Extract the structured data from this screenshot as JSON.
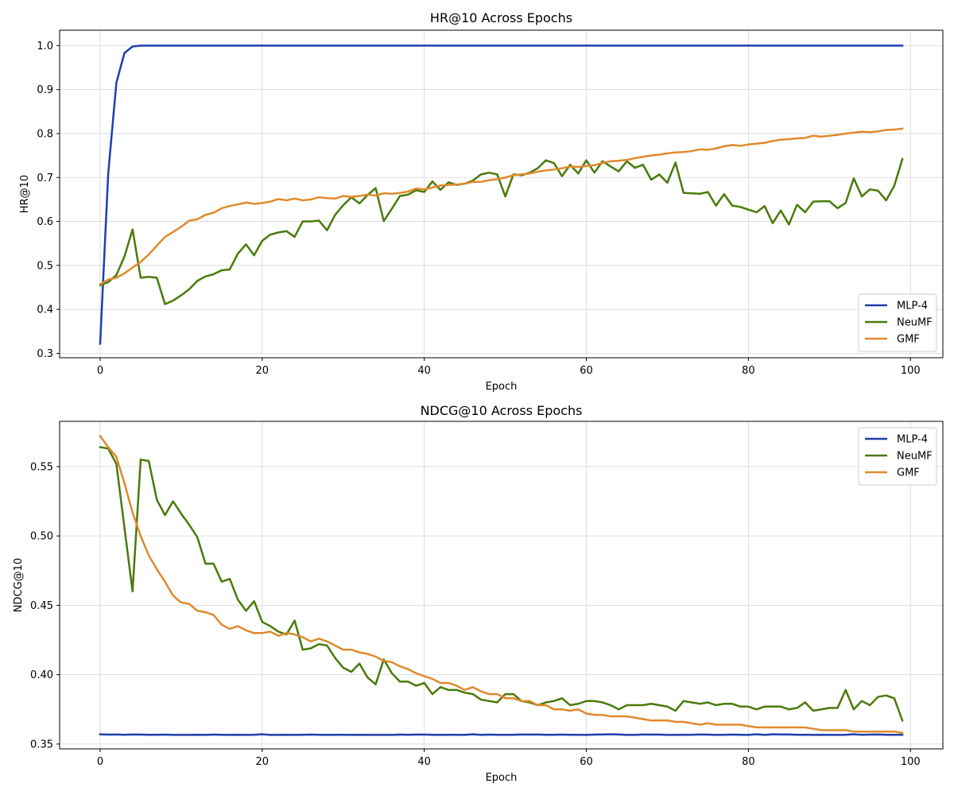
{
  "chart_data": [
    {
      "type": "line",
      "title": "HR@10 Across Epochs",
      "xlabel": "Epoch",
      "ylabel": "HR@10",
      "xlim": [
        -5,
        104
      ],
      "ylim": [
        0.29,
        1.035
      ],
      "xticks": [
        0,
        20,
        40,
        60,
        80,
        100
      ],
      "xtick_labels": [
        "0",
        "20",
        "40",
        "60",
        "80",
        "100"
      ],
      "yticks": [
        0.3,
        0.4,
        0.5,
        0.6,
        0.7,
        0.8,
        0.9,
        1.0
      ],
      "ytick_labels": [
        "0.3",
        "0.4",
        "0.5",
        "0.6",
        "0.7",
        "0.8",
        "0.9",
        "1.0"
      ],
      "grid": true,
      "legend": "lower right",
      "series": [
        {
          "name": "MLP-4",
          "color": "#1f3fae",
          "values": [
            0.322,
            0.71,
            0.915,
            0.983,
            0.998,
            1.0,
            1.0,
            1.0,
            1.0,
            1.0,
            1.0,
            1.0,
            1.0,
            1.0,
            1.0,
            1.0,
            1.0,
            1.0,
            1.0,
            1.0,
            1.0,
            1.0,
            1.0,
            1.0,
            1.0,
            1.0,
            1.0,
            1.0,
            1.0,
            1.0,
            1.0,
            1.0,
            1.0,
            1.0,
            1.0,
            1.0,
            1.0,
            1.0,
            1.0,
            1.0,
            1.0,
            1.0,
            1.0,
            1.0,
            1.0,
            1.0,
            1.0,
            1.0,
            1.0,
            1.0,
            1.0,
            1.0,
            1.0,
            1.0,
            1.0,
            1.0,
            1.0,
            1.0,
            1.0,
            1.0,
            1.0,
            1.0,
            1.0,
            1.0,
            1.0,
            1.0,
            1.0,
            1.0,
            1.0,
            1.0,
            1.0,
            1.0,
            1.0,
            1.0,
            1.0,
            1.0,
            1.0,
            1.0,
            1.0,
            1.0,
            1.0,
            1.0,
            1.0,
            1.0,
            1.0,
            1.0,
            1.0,
            1.0,
            1.0,
            1.0,
            1.0,
            1.0,
            1.0,
            1.0,
            1.0,
            1.0,
            1.0,
            1.0,
            1.0,
            1.0
          ]
        },
        {
          "name": "NeuMF",
          "color": "#4a7a0a",
          "values": [
            0.455,
            0.462,
            0.478,
            0.52,
            0.582,
            0.472,
            0.474,
            0.472,
            0.412,
            0.42,
            0.432,
            0.446,
            0.465,
            0.475,
            0.48,
            0.489,
            0.491,
            0.527,
            0.548,
            0.523,
            0.556,
            0.57,
            0.575,
            0.578,
            0.565,
            0.6,
            0.6,
            0.602,
            0.58,
            0.615,
            0.637,
            0.655,
            0.641,
            0.66,
            0.676,
            0.601,
            0.629,
            0.658,
            0.661,
            0.671,
            0.667,
            0.691,
            0.672,
            0.689,
            0.683,
            0.686,
            0.693,
            0.707,
            0.711,
            0.707,
            0.657,
            0.707,
            0.705,
            0.711,
            0.721,
            0.739,
            0.733,
            0.703,
            0.729,
            0.709,
            0.739,
            0.711,
            0.737,
            0.725,
            0.714,
            0.737,
            0.722,
            0.729,
            0.695,
            0.707,
            0.688,
            0.734,
            0.665,
            0.664,
            0.663,
            0.667,
            0.636,
            0.662,
            0.636,
            0.633,
            0.627,
            0.621,
            0.635,
            0.596,
            0.625,
            0.593,
            0.638,
            0.621,
            0.645,
            0.646,
            0.646,
            0.63,
            0.642,
            0.698,
            0.657,
            0.673,
            0.67,
            0.648,
            0.681,
            0.742
          ]
        },
        {
          "name": "GMF",
          "color": "#df8a2c",
          "values": [
            0.457,
            0.468,
            0.472,
            0.482,
            0.495,
            0.508,
            0.525,
            0.545,
            0.565,
            0.576,
            0.588,
            0.602,
            0.605,
            0.615,
            0.62,
            0.63,
            0.635,
            0.639,
            0.643,
            0.64,
            0.642,
            0.645,
            0.651,
            0.648,
            0.652,
            0.648,
            0.65,
            0.655,
            0.653,
            0.652,
            0.658,
            0.656,
            0.658,
            0.661,
            0.659,
            0.664,
            0.663,
            0.665,
            0.668,
            0.675,
            0.673,
            0.677,
            0.682,
            0.683,
            0.684,
            0.686,
            0.69,
            0.69,
            0.694,
            0.696,
            0.7,
            0.705,
            0.707,
            0.709,
            0.713,
            0.716,
            0.718,
            0.721,
            0.725,
            0.724,
            0.726,
            0.728,
            0.733,
            0.737,
            0.738,
            0.74,
            0.744,
            0.747,
            0.75,
            0.752,
            0.755,
            0.757,
            0.758,
            0.76,
            0.764,
            0.763,
            0.766,
            0.771,
            0.774,
            0.772,
            0.775,
            0.777,
            0.779,
            0.783,
            0.786,
            0.787,
            0.789,
            0.79,
            0.795,
            0.793,
            0.795,
            0.797,
            0.8,
            0.802,
            0.804,
            0.803,
            0.805,
            0.808,
            0.809,
            0.811
          ]
        }
      ]
    },
    {
      "type": "line",
      "title": "NDCG@10 Across Epochs",
      "xlabel": "Epoch",
      "ylabel": "NDCG@10",
      "xlim": [
        -5,
        104
      ],
      "ylim": [
        0.3465,
        0.5826
      ],
      "xticks": [
        0,
        20,
        40,
        60,
        80,
        100
      ],
      "xtick_labels": [
        "0",
        "20",
        "40",
        "60",
        "80",
        "100"
      ],
      "yticks": [
        0.35,
        0.4,
        0.45,
        0.5,
        0.55
      ],
      "ytick_labels": [
        "0.35",
        "0.40",
        "0.45",
        "0.50",
        "0.55"
      ],
      "grid": true,
      "legend": "upper right",
      "series": [
        {
          "name": "MLP-4",
          "color": "#1f3fae",
          "values": [
            0.357,
            0.3568,
            0.3569,
            0.3567,
            0.3569,
            0.3568,
            0.3567,
            0.3567,
            0.3568,
            0.3566,
            0.3566,
            0.3566,
            0.3567,
            0.3566,
            0.3568,
            0.3567,
            0.3566,
            0.3567,
            0.3566,
            0.3567,
            0.357,
            0.3566,
            0.3566,
            0.3567,
            0.3566,
            0.3567,
            0.3568,
            0.3567,
            0.3566,
            0.3567,
            0.3567,
            0.3566,
            0.3567,
            0.3566,
            0.3566,
            0.3566,
            0.3566,
            0.3568,
            0.3567,
            0.3568,
            0.3568,
            0.3567,
            0.3566,
            0.3567,
            0.3567,
            0.3566,
            0.357,
            0.3566,
            0.3568,
            0.3567,
            0.3567,
            0.3567,
            0.3569,
            0.3568,
            0.3569,
            0.3567,
            0.3567,
            0.3568,
            0.3567,
            0.3567,
            0.3566,
            0.3568,
            0.3569,
            0.357,
            0.3569,
            0.3566,
            0.3566,
            0.3569,
            0.3568,
            0.3568,
            0.3566,
            0.3566,
            0.3567,
            0.3567,
            0.3569,
            0.3568,
            0.3566,
            0.3567,
            0.3568,
            0.3567,
            0.3566,
            0.357,
            0.3566,
            0.357,
            0.3569,
            0.3569,
            0.3567,
            0.3567,
            0.3566,
            0.3567,
            0.3566,
            0.3566,
            0.3567,
            0.357,
            0.3567,
            0.3568,
            0.3569,
            0.3567,
            0.3567,
            0.3567
          ]
        },
        {
          "name": "NeuMF",
          "color": "#4a7a0a",
          "values": [
            0.564,
            0.563,
            0.552,
            0.506,
            0.46,
            0.555,
            0.554,
            0.526,
            0.515,
            0.525,
            0.516,
            0.508,
            0.499,
            0.48,
            0.48,
            0.467,
            0.469,
            0.454,
            0.446,
            0.453,
            0.438,
            0.435,
            0.431,
            0.429,
            0.439,
            0.418,
            0.419,
            0.422,
            0.421,
            0.412,
            0.405,
            0.402,
            0.408,
            0.398,
            0.393,
            0.411,
            0.401,
            0.395,
            0.395,
            0.392,
            0.394,
            0.386,
            0.391,
            0.389,
            0.389,
            0.387,
            0.386,
            0.382,
            0.381,
            0.38,
            0.386,
            0.386,
            0.381,
            0.38,
            0.378,
            0.38,
            0.381,
            0.383,
            0.378,
            0.379,
            0.381,
            0.381,
            0.38,
            0.378,
            0.375,
            0.378,
            0.378,
            0.378,
            0.379,
            0.378,
            0.377,
            0.374,
            0.381,
            0.38,
            0.379,
            0.38,
            0.378,
            0.379,
            0.379,
            0.377,
            0.377,
            0.375,
            0.377,
            0.377,
            0.377,
            0.375,
            0.376,
            0.38,
            0.374,
            0.375,
            0.376,
            0.376,
            0.389,
            0.375,
            0.381,
            0.378,
            0.384,
            0.385,
            0.383,
            0.367
          ]
        },
        {
          "name": "GMF",
          "color": "#df8a2c",
          "values": [
            0.572,
            0.564,
            0.557,
            0.538,
            0.517,
            0.5,
            0.486,
            0.476,
            0.467,
            0.457,
            0.452,
            0.451,
            0.446,
            0.445,
            0.443,
            0.436,
            0.433,
            0.435,
            0.432,
            0.43,
            0.43,
            0.431,
            0.428,
            0.43,
            0.429,
            0.427,
            0.424,
            0.426,
            0.424,
            0.421,
            0.418,
            0.418,
            0.416,
            0.415,
            0.413,
            0.41,
            0.409,
            0.406,
            0.404,
            0.401,
            0.399,
            0.397,
            0.394,
            0.394,
            0.392,
            0.389,
            0.391,
            0.388,
            0.386,
            0.386,
            0.383,
            0.383,
            0.381,
            0.381,
            0.378,
            0.378,
            0.375,
            0.375,
            0.374,
            0.375,
            0.372,
            0.371,
            0.371,
            0.37,
            0.37,
            0.37,
            0.369,
            0.368,
            0.367,
            0.367,
            0.367,
            0.366,
            0.366,
            0.365,
            0.364,
            0.365,
            0.364,
            0.364,
            0.364,
            0.364,
            0.363,
            0.362,
            0.362,
            0.362,
            0.362,
            0.362,
            0.362,
            0.362,
            0.361,
            0.36,
            0.36,
            0.36,
            0.36,
            0.359,
            0.359,
            0.359,
            0.359,
            0.359,
            0.359,
            0.358
          ]
        }
      ]
    }
  ]
}
